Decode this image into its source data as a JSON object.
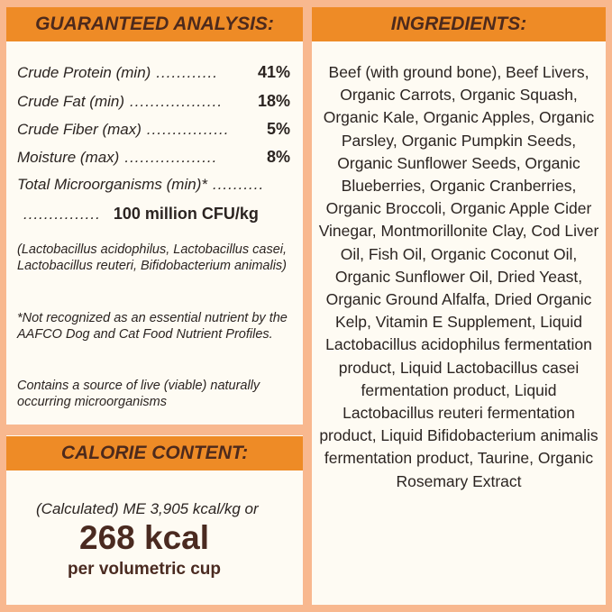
{
  "colors": {
    "background": "#f8b88f",
    "header": "#ee8b26",
    "panel": "#fefbf3",
    "heading_text": "#4d2a1c"
  },
  "analysis": {
    "title": "GUARANTEED ANALYSIS:",
    "rows": [
      {
        "label": "Crude Protein (min)",
        "dots": "............",
        "value": "41%"
      },
      {
        "label": "Crude Fat (min)",
        "dots": "..................",
        "value": "18%"
      },
      {
        "label": "Crude Fiber (max)",
        "dots": "................",
        "value": "5%"
      },
      {
        "label": "Moisture (max)",
        "dots": "..................",
        "value": "8%"
      }
    ],
    "micro_label": "Total Microorganisms (min)*",
    "micro_dots": "..........",
    "micro_dots2": "...............",
    "micro_value": "100 million CFU/kg",
    "strains": "(Lactobacillus acidophilus, Lactobacillus casei, Lactobacillus reuteri, Bifidobacterium animalis)",
    "footnote": "*Not recognized as an essential nutrient by the AAFCO Dog and Cat Food Nutrient Profiles.",
    "live_note": "Contains a source of live (viable) naturally occurring microorganisms"
  },
  "calorie": {
    "title": "CALORIE CONTENT:",
    "calculated": "(Calculated) ME 3,905 kcal/kg or",
    "kcal": "268 kcal",
    "per": "per volumetric cup"
  },
  "ingredients": {
    "title": "INGREDIENTS:",
    "text": "Beef (with ground bone), Beef Livers, Organic Carrots, Organic Squash, Organic Kale, Organic Apples, Organic Parsley, Organic Pumpkin Seeds, Organic Sunflower Seeds, Organic Blueberries, Organic Cranberries, Organic Broccoli, Organic Apple Cider Vinegar, Montmorillonite Clay, Cod Liver Oil, Fish Oil, Organic Coconut Oil, Organic Sunflower Oil, Dried Yeast, Organic Ground Alfalfa, Dried Organic Kelp, Vitamin E Supplement, Liquid Lactobacillus acidophilus fermentation product, Liquid Lactobacillus casei fermentation product, Liquid Lactobacillus reuteri fermentation product, Liquid Bifidobacterium animalis fermentation product, Taurine, Organic Rosemary Extract"
  }
}
